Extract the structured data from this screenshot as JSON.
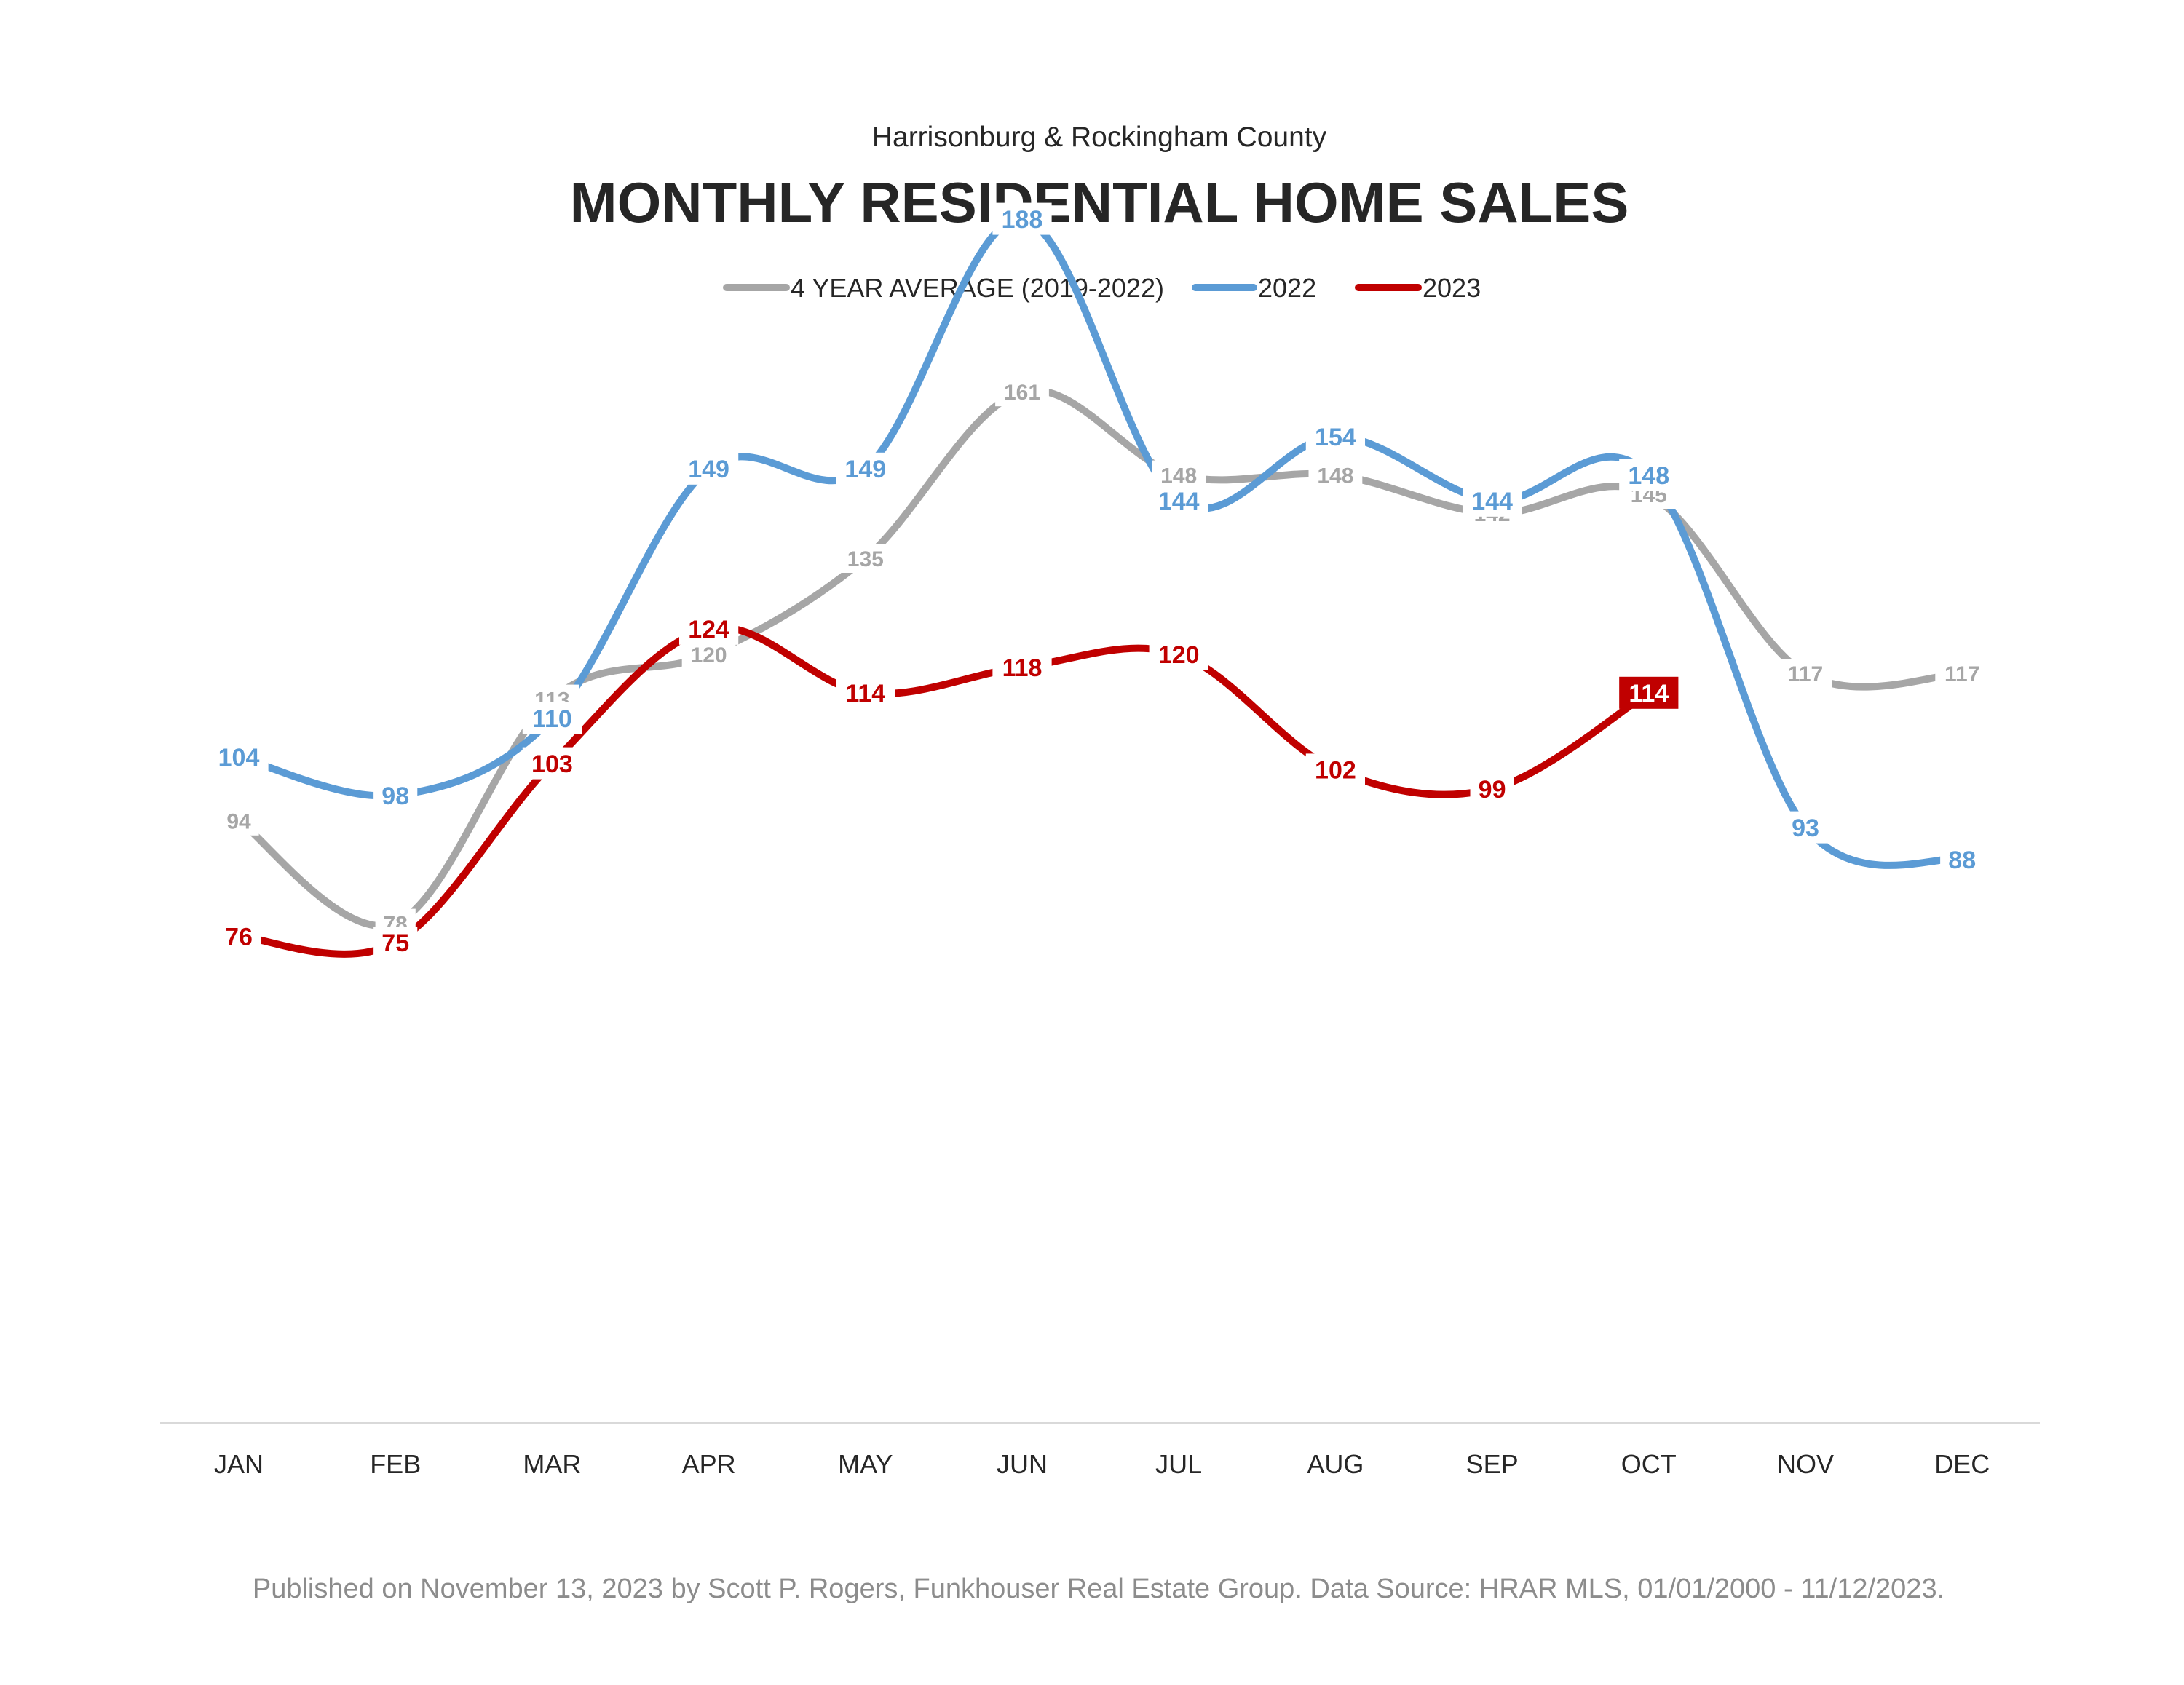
{
  "chart_data": {
    "type": "line",
    "subtitle": "Harrisonburg & Rockingham County",
    "title": "MONTHLY RESIDENTIAL HOME SALES",
    "categories": [
      "JAN",
      "FEB",
      "MAR",
      "APR",
      "MAY",
      "JUN",
      "JUL",
      "AUG",
      "SEP",
      "OCT",
      "NOV",
      "DEC"
    ],
    "ylim": [
      0,
      200
    ],
    "grid": false,
    "legend_position": "top-center",
    "series": [
      {
        "name": "4 YEAR AVERAGE (2019-2022)",
        "color": "#a6a6a6",
        "values": [
          94,
          78,
          113,
          120,
          135,
          161,
          148,
          148,
          142,
          145,
          117,
          117
        ]
      },
      {
        "name": "2022",
        "color": "#5b9bd5",
        "values": [
          104,
          98,
          110,
          149,
          149,
          188,
          144,
          154,
          144,
          148,
          93,
          88
        ]
      },
      {
        "name": "2023",
        "color": "#c00000",
        "values": [
          76,
          75,
          103,
          124,
          114,
          118,
          120,
          102,
          99,
          114,
          null,
          null
        ]
      }
    ],
    "highlight": {
      "series": "2023",
      "category": "OCT",
      "value": 114
    }
  },
  "footer": "Published on November 13, 2023 by Scott P. Rogers, Funkhouser Real Estate Group. Data Source: HRAR MLS, 01/01/2000 - 11/12/2023."
}
